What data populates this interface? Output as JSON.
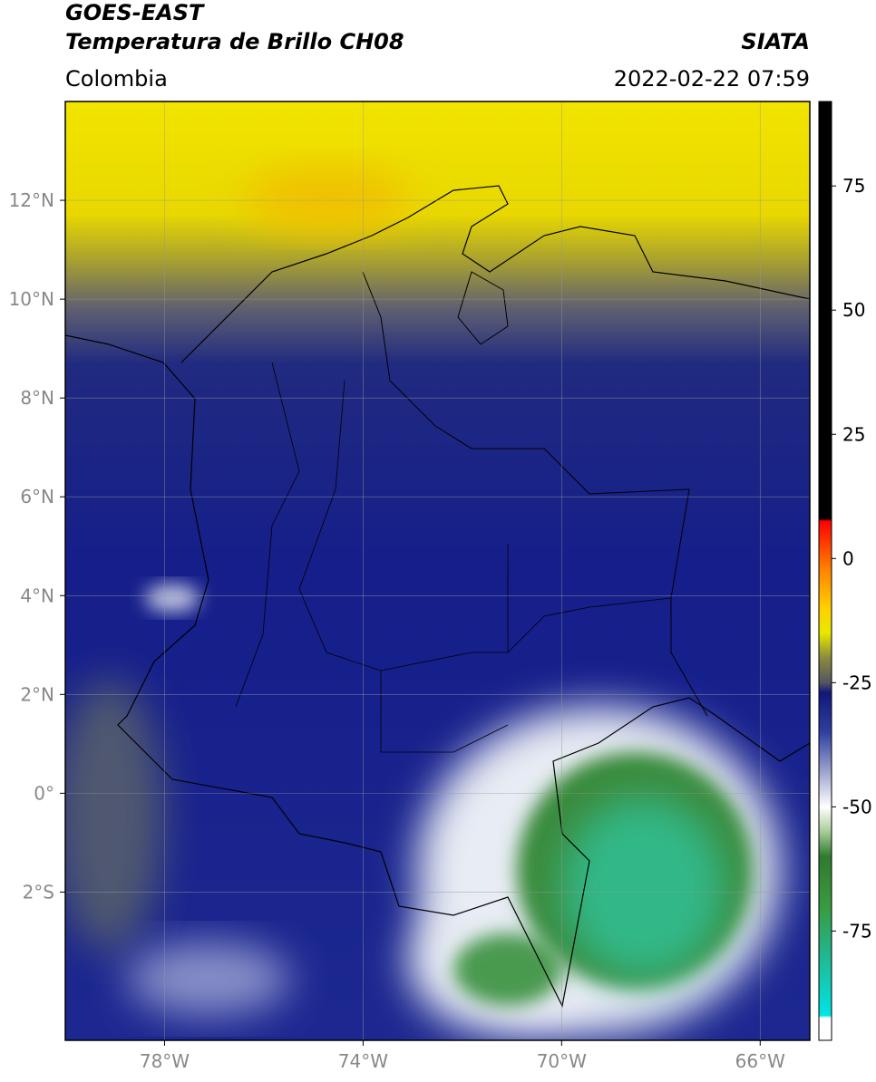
{
  "header": {
    "title": "GOES-EAST",
    "subtitle": "Temperatura de Brillo CH08",
    "region": "Colombia",
    "source": "SIATA",
    "datetime": "2022-02-22 07:59"
  },
  "map": {
    "lonlim": [
      -80,
      -65
    ],
    "latlim": [
      -5,
      14
    ],
    "lonticks": [
      {
        "value": -78,
        "label": "78°W"
      },
      {
        "value": -74,
        "label": "74°W"
      },
      {
        "value": -70,
        "label": "70°W"
      },
      {
        "value": -66,
        "label": "66°W"
      }
    ],
    "latticks": [
      {
        "value": 12,
        "label": "12°N"
      },
      {
        "value": 10,
        "label": "10°N"
      },
      {
        "value": 8,
        "label": "8°N"
      },
      {
        "value": 6,
        "label": "6°N"
      },
      {
        "value": 4,
        "label": "4°N"
      },
      {
        "value": 2,
        "label": "2°N"
      },
      {
        "value": 0,
        "label": "0°"
      },
      {
        "value": -2,
        "label": "2°S"
      }
    ],
    "grid": true
  },
  "colorbar": {
    "clim": [
      -97,
      92
    ],
    "ticks": [
      75,
      50,
      25,
      0,
      -25,
      -50,
      -75
    ],
    "stops": [
      {
        "value": -97,
        "color": "#ffffff"
      },
      {
        "value": -92.5,
        "color": "#ffffff"
      },
      {
        "value": -92,
        "color": "#00e5e5"
      },
      {
        "value": -80,
        "color": "#20b890"
      },
      {
        "value": -70,
        "color": "#3a9a40"
      },
      {
        "value": -60,
        "color": "#2f7a2f"
      },
      {
        "value": -55,
        "color": "#a8cc98"
      },
      {
        "value": -50,
        "color": "#ffffff"
      },
      {
        "value": -42,
        "color": "#9098c8"
      },
      {
        "value": -35,
        "color": "#3040a0"
      },
      {
        "value": -27,
        "color": "#101878"
      },
      {
        "value": -25,
        "color": "#555560"
      },
      {
        "value": -20,
        "color": "#8a8a40"
      },
      {
        "value": -15,
        "color": "#e8e800"
      },
      {
        "value": -10,
        "color": "#ffd000"
      },
      {
        "value": -2,
        "color": "#ff8000"
      },
      {
        "value": 7.5,
        "color": "#ff0000"
      },
      {
        "value": 8,
        "color": "#000000"
      },
      {
        "value": 92,
        "color": "#000000"
      }
    ]
  }
}
